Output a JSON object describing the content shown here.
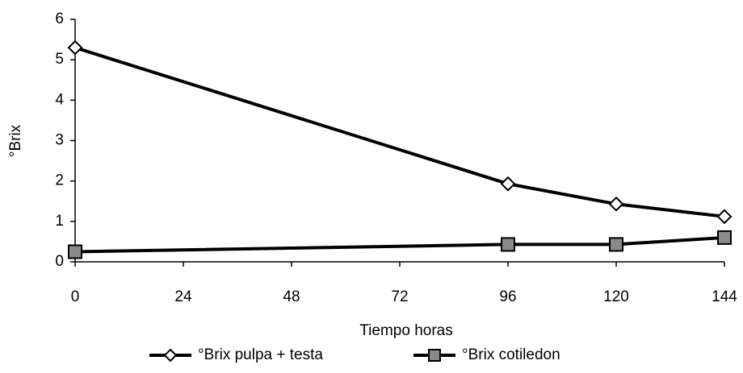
{
  "chart_data": {
    "type": "line",
    "x_label": "Tiempo horas",
    "y_label": "°Brix",
    "x": [
      0,
      96,
      120,
      144
    ],
    "series": [
      {
        "name": "°Brix pulpa + testa",
        "color": "#000000",
        "marker": "diamond",
        "marker_fill": "#ffffff",
        "values": [
          5.3,
          1.93,
          1.43,
          1.12
        ]
      },
      {
        "name": "°Brix cotiledon",
        "color": "#000000",
        "marker": "square",
        "marker_fill": "#8a8a8a",
        "values": [
          0.25,
          0.43,
          0.43,
          0.6
        ]
      }
    ],
    "xlim": [
      0,
      144
    ],
    "xticks": [
      0,
      24,
      48,
      72,
      96,
      120,
      144
    ],
    "ylim": [
      0,
      6
    ],
    "yticks": [
      0,
      1,
      2,
      3,
      4,
      5,
      6
    ],
    "grid": false,
    "legend": "bottom"
  }
}
